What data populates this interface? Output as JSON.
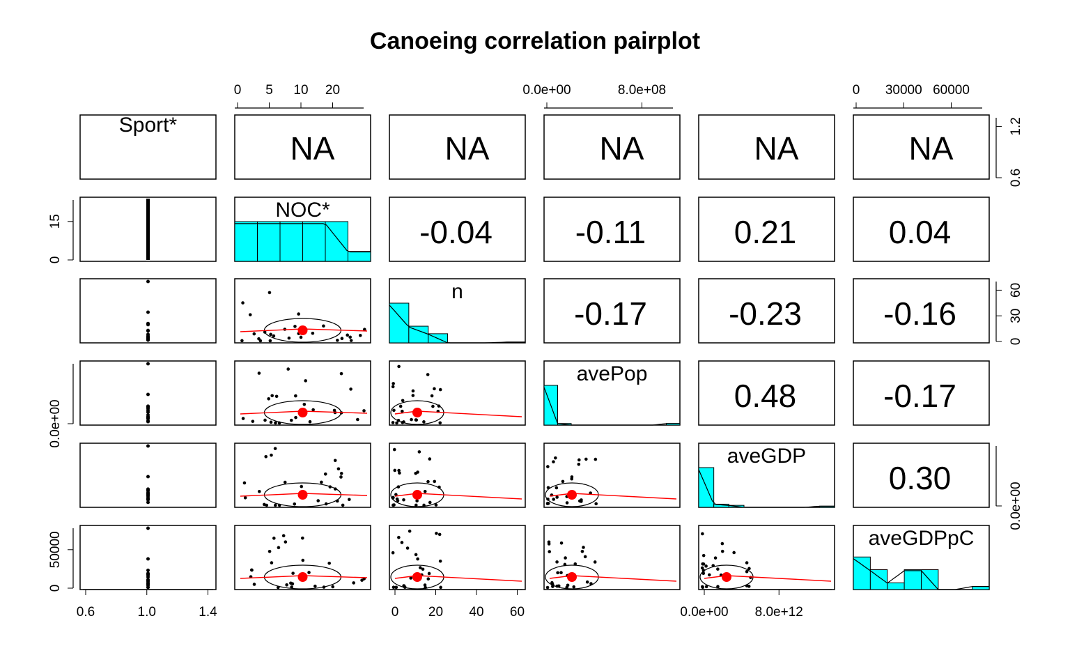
{
  "chart_data": {
    "type": "scatter",
    "title": "Canoeing correlation pairplot",
    "variables": [
      "Sport*",
      "NOC*",
      "n",
      "avePop",
      "aveGDP",
      "aveGDPpC"
    ],
    "na_label": "NA",
    "correlations": [
      {
        "row": 1,
        "col": 2,
        "text": "-0.04"
      },
      {
        "row": 1,
        "col": 3,
        "text": "-0.11"
      },
      {
        "row": 1,
        "col": 4,
        "text": "0.21"
      },
      {
        "row": 1,
        "col": 5,
        "text": "0.04"
      },
      {
        "row": 2,
        "col": 3,
        "text": "-0.17"
      },
      {
        "row": 2,
        "col": 4,
        "text": "-0.23"
      },
      {
        "row": 2,
        "col": 5,
        "text": "-0.16"
      },
      {
        "row": 3,
        "col": 4,
        "text": "0.48"
      },
      {
        "row": 3,
        "col": 5,
        "text": "-0.17"
      },
      {
        "row": 4,
        "col": 5,
        "text": "0.30"
      }
    ],
    "axes": {
      "top": [
        {
          "col": 1,
          "labels": [
            "0",
            "5",
            "10",
            "20"
          ]
        },
        {
          "col": 3,
          "labels": [
            "0.0e+00",
            "8.0e+08"
          ]
        },
        {
          "col": 5,
          "labels": [
            "0",
            "30000",
            "60000"
          ]
        }
      ],
      "bottom": [
        {
          "col": 0,
          "labels": [
            "0.6",
            "1.0",
            "1.4"
          ]
        },
        {
          "col": 2,
          "labels": [
            "0",
            "20",
            "40",
            "60"
          ]
        },
        {
          "col": 4,
          "labels": [
            "0.0e+00",
            "8.0e+12"
          ]
        }
      ],
      "left": [
        {
          "row": 1,
          "labels": [
            "0",
            "15"
          ]
        },
        {
          "row": 3,
          "labels": [
            "0.0e+00"
          ]
        },
        {
          "row": 5,
          "labels": [
            "0",
            "50000"
          ]
        }
      ],
      "right": [
        {
          "row": 0,
          "labels": [
            "0.6",
            "1.2"
          ]
        },
        {
          "row": 2,
          "labels": [
            "0",
            "30",
            "60"
          ]
        },
        {
          "row": 4,
          "labels": [
            "0.0e+00"
          ]
        }
      ]
    },
    "colors": {
      "histogram": "#00FFFF",
      "points": "#000000",
      "loess": "#FF0000",
      "mean_point": "#FF0000"
    },
    "histograms": [
      {
        "col": 1,
        "counts": [
          1.0,
          1.0,
          1.0,
          1.0,
          1.0,
          0.25
        ]
      },
      {
        "col": 2,
        "counts": [
          1.0,
          0.42,
          0.23,
          0.0,
          0.0,
          0.0,
          0.02
        ]
      },
      {
        "col": 3,
        "counts": [
          1.0,
          0.04,
          0.0,
          0.0,
          0.0,
          0.0,
          0.0,
          0.0,
          0.0,
          0.04
        ]
      },
      {
        "col": 4,
        "counts": [
          1.0,
          0.08,
          0.05,
          0.0,
          0.0,
          0.0,
          0.0,
          0.0,
          0.03
        ]
      },
      {
        "col": 5,
        "counts": [
          0.82,
          0.5,
          0.17,
          0.5,
          0.5,
          0.0,
          0.0,
          0.08
        ]
      }
    ],
    "xlabel": "",
    "ylabel": ""
  }
}
